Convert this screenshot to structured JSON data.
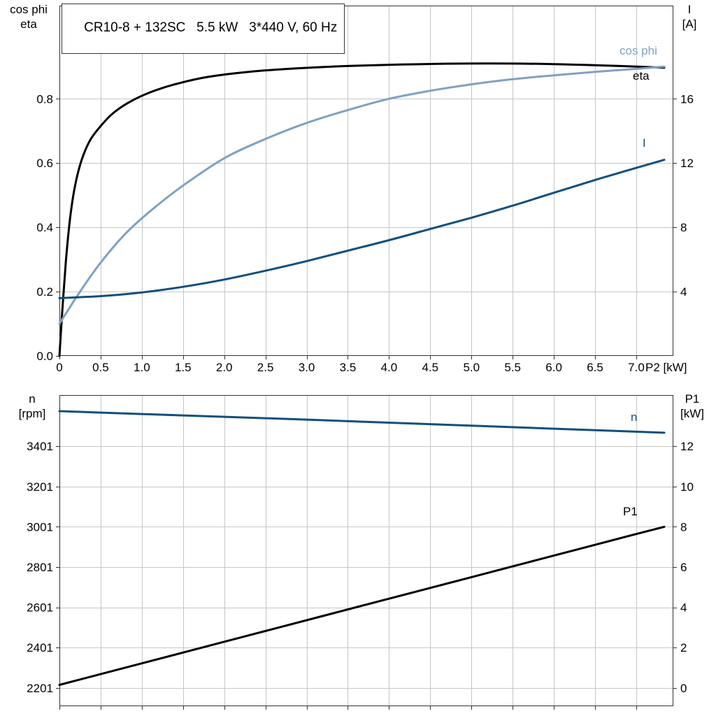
{
  "colors": {
    "black": "#000000",
    "light_blue": "#7fa1c2",
    "dark_blue": "#104f7d",
    "grid": "#c6c6c6",
    "frame": "#333333",
    "text": "#000000",
    "background": "#ffffff"
  },
  "axis_corner_labels": {
    "top_left": [
      "cos phi",
      "eta"
    ],
    "top_right": [
      "I",
      "[A]"
    ],
    "bottom_left": [
      "n",
      "[rpm]"
    ],
    "bottom_right": [
      "P1",
      "[kW]"
    ]
  },
  "chart_data": [
    {
      "id": "electrical",
      "type": "line",
      "title": "CR10-8 + 132SC   5.5 kW   3*440 V, 60 Hz",
      "grid": true,
      "legend_position": "right-inline",
      "x_axis": {
        "label": "P2 [kW]",
        "min": 0,
        "max": 7.45,
        "show_labels": true,
        "tick_values": [
          0,
          0.5,
          1,
          1.5,
          2,
          2.5,
          3,
          3.5,
          4,
          4.5,
          5,
          5.5,
          6,
          6.5,
          7
        ],
        "tick_labels": [
          "0",
          "0.5",
          "1.0",
          "1.5",
          "2.0",
          "2.5",
          "3.0",
          "3.5",
          "4.0",
          "4.5",
          "5.0",
          "5.5",
          "6.0",
          "6.5",
          "7.0"
        ]
      },
      "y_left": {
        "label": "cos phi / eta",
        "min": 0,
        "max": 1.09,
        "tick_values": [
          0,
          0.2,
          0.4,
          0.6,
          0.8
        ],
        "tick_labels": [
          "0.0",
          "0.2",
          "0.4",
          "0.6",
          "0.8"
        ]
      },
      "y_right": {
        "label": "I [A]",
        "min": 0,
        "max": 21.8,
        "tick_values": [
          4,
          8,
          12,
          16
        ],
        "tick_labels": [
          "4",
          "8",
          "12",
          "16"
        ]
      },
      "series": [
        {
          "name": "eta",
          "axis": "left",
          "color_key": "black",
          "x": [
            0,
            0.04,
            0.08,
            0.13,
            0.19,
            0.27,
            0.37,
            0.5,
            0.65,
            0.85,
            1.1,
            1.4,
            1.8,
            2.3,
            2.9,
            3.6,
            4.4,
            5.2,
            6.0,
            6.7,
            7.34
          ],
          "y": [
            0,
            0.16,
            0.3,
            0.43,
            0.53,
            0.61,
            0.67,
            0.715,
            0.755,
            0.79,
            0.82,
            0.845,
            0.868,
            0.884,
            0.895,
            0.903,
            0.908,
            0.91,
            0.908,
            0.903,
            0.897
          ]
        },
        {
          "name": "cos phi",
          "axis": "left",
          "color_key": "light_blue",
          "x": [
            0,
            0.25,
            0.5,
            0.8,
            1.1,
            1.5,
            2.0,
            2.5,
            3.0,
            3.5,
            4.0,
            4.5,
            5.0,
            5.5,
            6.0,
            6.5,
            7.0,
            7.34
          ],
          "y": [
            0.1,
            0.2,
            0.29,
            0.38,
            0.45,
            0.53,
            0.615,
            0.675,
            0.725,
            0.765,
            0.8,
            0.825,
            0.845,
            0.861,
            0.873,
            0.884,
            0.893,
            0.9
          ]
        },
        {
          "name": "I",
          "axis": "right",
          "color_key": "dark_blue",
          "x": [
            0,
            0.5,
            1.0,
            1.5,
            2.0,
            2.5,
            3.0,
            3.5,
            4.0,
            4.5,
            5.0,
            5.5,
            6.0,
            6.5,
            7.0,
            7.34
          ],
          "y": [
            3.6,
            3.72,
            3.95,
            4.3,
            4.75,
            5.3,
            5.9,
            6.55,
            7.2,
            7.9,
            8.6,
            9.35,
            10.15,
            10.95,
            11.7,
            12.2
          ]
        }
      ]
    },
    {
      "id": "speed-and-input-power",
      "type": "line",
      "title": "",
      "grid": true,
      "legend_position": "right-inline",
      "x_axis": {
        "label": "",
        "min": 0,
        "max": 7.45,
        "show_labels": false,
        "tick_values": [
          0,
          0.5,
          1,
          1.5,
          2,
          2.5,
          3,
          3.5,
          4,
          4.5,
          5,
          5.5,
          6,
          6.5,
          7
        ],
        "tick_labels": []
      },
      "y_left": {
        "label": "n [rpm]",
        "min": 2110,
        "max": 3655,
        "tick_values": [
          2201,
          2401,
          2601,
          2801,
          3001,
          3201,
          3401
        ],
        "tick_labels": [
          "2201",
          "2401",
          "2601",
          "2801",
          "3001",
          "3201",
          "3401"
        ]
      },
      "y_right": {
        "label": "P1 [kW]",
        "min": -0.91,
        "max": 14.54,
        "tick_values": [
          0,
          2,
          4,
          6,
          8,
          10,
          12
        ],
        "tick_labels": [
          "0",
          "2",
          "4",
          "6",
          "8",
          "10",
          "12"
        ]
      },
      "series": [
        {
          "name": "n",
          "axis": "left",
          "color_key": "dark_blue",
          "x": [
            0,
            1,
            2,
            3,
            4,
            5,
            6,
            7,
            7.34
          ],
          "y": [
            3575,
            3561,
            3547,
            3533,
            3518,
            3503,
            3488,
            3473,
            3468
          ]
        },
        {
          "name": "P1",
          "axis": "right",
          "color_key": "black",
          "x": [
            0,
            1,
            2,
            3,
            4,
            5,
            6,
            7,
            7.34
          ],
          "y": [
            0.15,
            1.22,
            2.29,
            3.36,
            4.43,
            5.5,
            6.57,
            7.64,
            8.0
          ]
        }
      ]
    }
  ]
}
